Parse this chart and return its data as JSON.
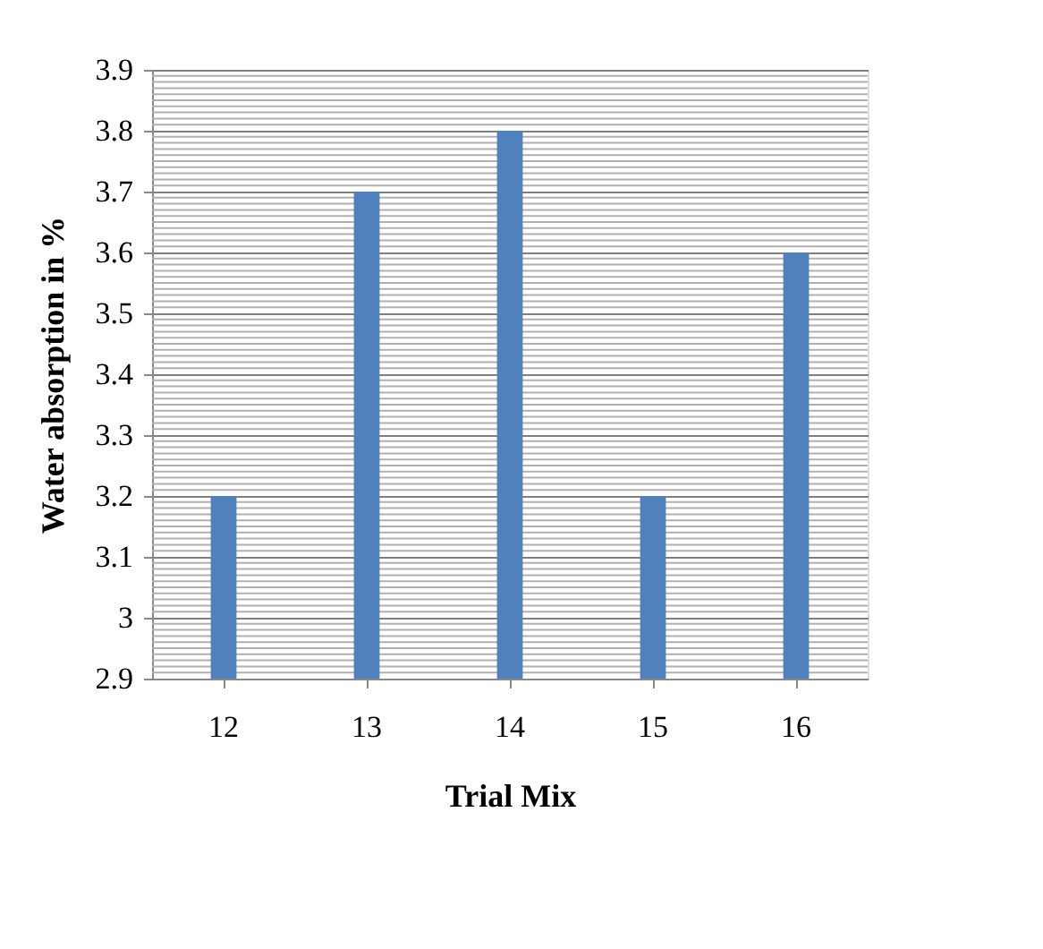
{
  "chart_data": {
    "type": "bar",
    "xlabel": "Trial Mix",
    "ylabel": "Water absorption in %",
    "categories": [
      "12",
      "13",
      "14",
      "15",
      "16"
    ],
    "values": [
      3.2,
      3.7,
      3.8,
      3.2,
      3.6
    ],
    "color": "#4f81bd",
    "ylim": [
      2.9,
      3.9
    ],
    "yticks": [
      2.9,
      3,
      3.1,
      3.2,
      3.3,
      3.4,
      3.5,
      3.6,
      3.7,
      3.8,
      3.9
    ],
    "grid": "y"
  }
}
